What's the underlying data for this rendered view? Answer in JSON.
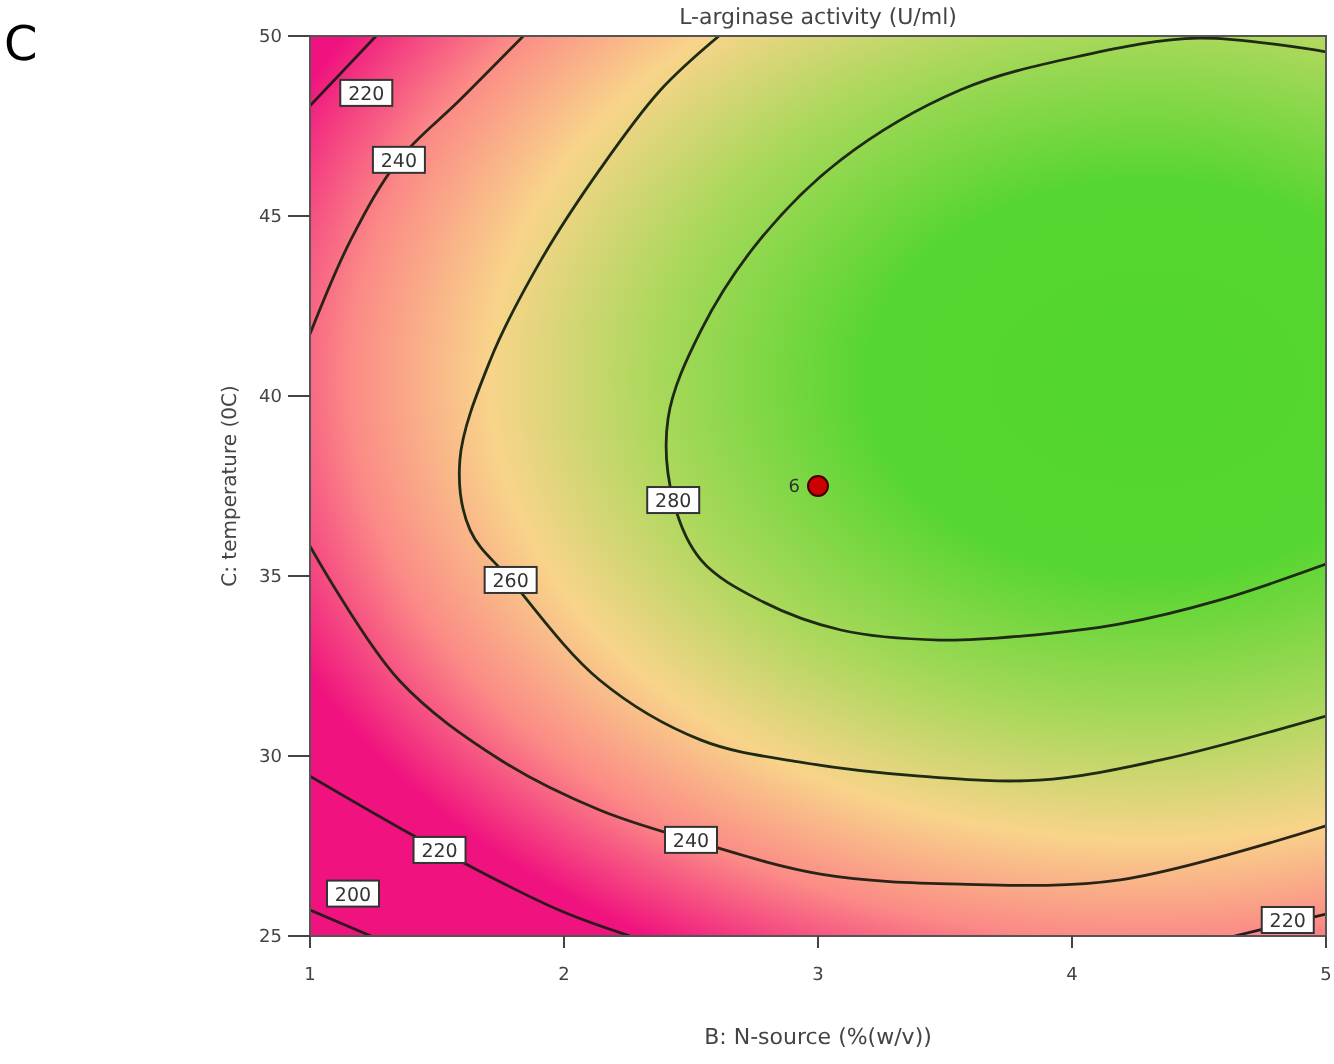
{
  "chart_data": {
    "type": "line",
    "title": "L-arginase activity (U/ml)",
    "xlabel": "B: N-source (%(w/v))",
    "ylabel": "C: temperature (0C)",
    "annotations": [
      "C"
    ],
    "xlim": [
      1,
      5
    ],
    "xticks": [
      1,
      2,
      3,
      4,
      5
    ],
    "ylim": [
      25,
      50
    ],
    "yticks": [
      25,
      30,
      35,
      40,
      45,
      50
    ],
    "grid": false,
    "series": [
      {
        "name": "280",
        "color": "#1e2a14",
        "x": [
          5,
          4.5,
          4.03,
          3.56,
          3.09,
          2.77,
          2.54,
          2.41,
          2.43,
          2.54,
          2.77,
          3.09,
          3.48,
          3.8,
          4.19,
          4.58,
          5
        ],
        "values": [
          49.56,
          49.94,
          49.44,
          48.5,
          46.56,
          44.33,
          41.83,
          39.39,
          37.11,
          35.44,
          34.33,
          33.5,
          33.22,
          33.33,
          33.67,
          34.33,
          35.33
        ]
      },
      {
        "name": "260",
        "color": "#1e2a14",
        "x": [
          2.61,
          2.38,
          2.14,
          1.91,
          1.71,
          1.59,
          1.63,
          1.79,
          2.14,
          2.54,
          2.93,
          3.4,
          3.87,
          4.35,
          5
        ],
        "values": [
          50,
          48.5,
          46.28,
          43.78,
          41,
          38.22,
          36.28,
          34.89,
          32.11,
          30.44,
          29.83,
          29.44,
          29.33,
          29.89,
          31.11
        ]
      },
      {
        "name": "240",
        "color": "#2a2418",
        "x": [
          1.84,
          1.59,
          1.35,
          1.16,
          1,
          null,
          1,
          1.35,
          1.75,
          2.14,
          2.5,
          3.01,
          3.56,
          4.19,
          5
        ],
        "values": [
          50,
          48.22,
          46.56,
          44.33,
          41.72,
          null,
          35.83,
          32.11,
          29.89,
          28.5,
          27.67,
          26.72,
          26.44,
          26.56,
          28.06
        ]
      },
      {
        "name": "220",
        "color": "#2a1a1e",
        "x": [
          1,
          1.26,
          null,
          1,
          1.51,
          1.98,
          2.26,
          null,
          4.64,
          5
        ],
        "values": [
          48.06,
          50,
          null,
          29.44,
          27.39,
          25.72,
          25,
          null,
          25,
          25.61
        ]
      },
      {
        "name": "200",
        "color": "#2a1a1e",
        "x": [
          1,
          1.24
        ],
        "values": [
          25.72,
          25
        ]
      },
      {
        "name": "6",
        "type": "scatter",
        "marker": "circle",
        "color": "#cc0000",
        "x": [
          3
        ],
        "values": [
          37.5
        ]
      }
    ]
  }
}
